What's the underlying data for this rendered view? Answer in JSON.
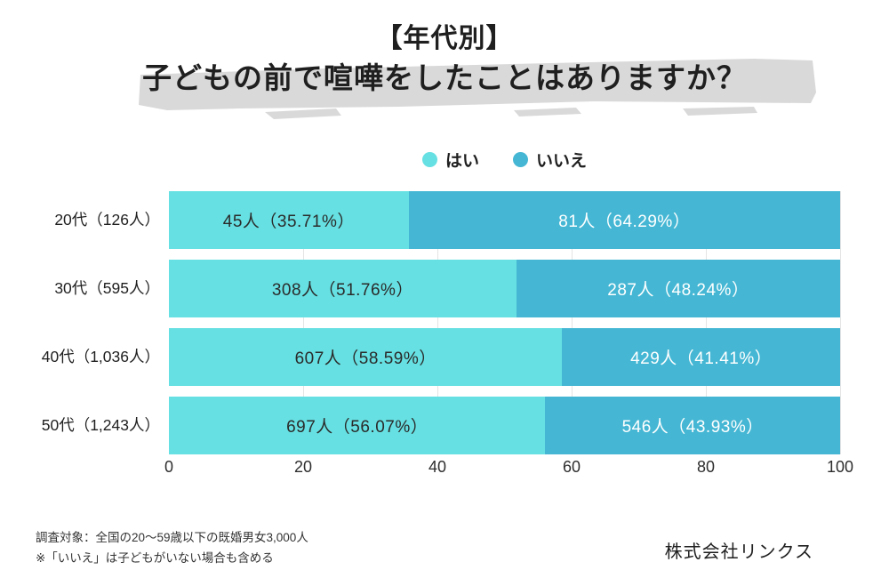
{
  "title": {
    "line1": "【年代別】",
    "line2": "子どもの前で喧嘩をしたことはありますか？"
  },
  "legend": {
    "yes": {
      "label": "はい",
      "color": "#66E0E2"
    },
    "no": {
      "label": "いいえ",
      "color": "#45B7D4"
    }
  },
  "chart_data": {
    "type": "bar",
    "orientation": "horizontal-stacked",
    "title": "【年代別】子どもの前で喧嘩をしたことはありますか？",
    "xlabel": "",
    "ylabel": "",
    "xlim": [
      0,
      100
    ],
    "unit": "percent",
    "grid": true,
    "legend_position": "top-center",
    "categories": [
      "20代（126人）",
      "30代（595人）",
      "40代（1,036人）",
      "50代（1,243人）"
    ],
    "x_ticks": [
      "0",
      "20",
      "40",
      "60",
      "80",
      "100"
    ],
    "series": [
      {
        "name": "はい",
        "color": "#66E0E2",
        "counts": [
          45,
          308,
          607,
          697
        ],
        "percents": [
          35.71,
          51.76,
          58.59,
          56.07
        ]
      },
      {
        "name": "いいえ",
        "color": "#45B7D4",
        "counts": [
          81,
          287,
          429,
          546
        ],
        "percents": [
          64.29,
          48.24,
          41.41,
          43.93
        ]
      }
    ],
    "rows": [
      {
        "label": "20代（126人）",
        "yes_pct": 35.71,
        "no_pct": 64.29,
        "yes_label": "45人（35.71%）",
        "no_label": "81人（64.29%）"
      },
      {
        "label": "30代（595人）",
        "yes_pct": 51.76,
        "no_pct": 48.24,
        "yes_label": "308人（51.76%）",
        "no_label": "287人（48.24%）"
      },
      {
        "label": "40代（1,036人）",
        "yes_pct": 58.59,
        "no_pct": 41.41,
        "yes_label": "607人（58.59%）",
        "no_label": "429人（41.41%）"
      },
      {
        "label": "50代（1,243人）",
        "yes_pct": 56.07,
        "no_pct": 43.93,
        "yes_label": "697人（56.07%）",
        "no_label": "546人（43.93%）"
      }
    ]
  },
  "footer": {
    "note1": "調査対象：全国の20～59歳以下の既婚男女3,000人",
    "note2": "※「いいえ」は子どもがいない場合も含める",
    "company": "株式会社リンクス"
  },
  "colors": {
    "yes_bar": "#66E0E2",
    "no_bar": "#45B7D4",
    "title_highlight": "#D9D9D9",
    "gridline": "#E4E4E4",
    "yes_label_text": "#2B2B2B",
    "no_label_text": "#FFFFFF"
  }
}
